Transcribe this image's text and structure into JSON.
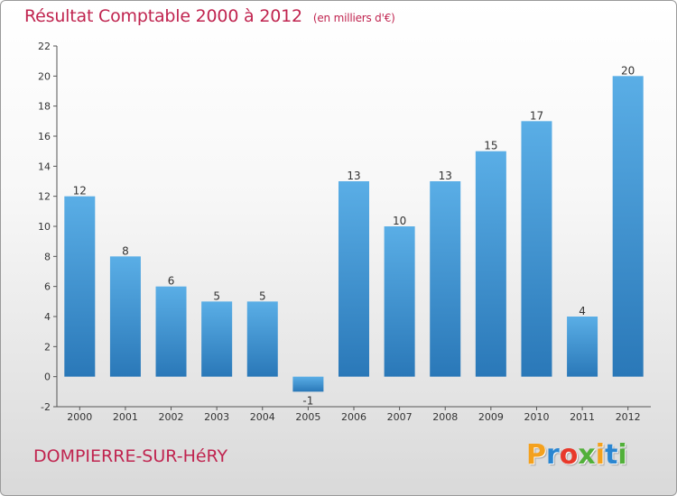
{
  "header": {
    "title": "Résultat Comptable 2000 à 2012",
    "subtitle": "(en milliers d'€)"
  },
  "footer": {
    "commune": "DOMPIERRE-SUR-HéRY",
    "logo_letters": [
      "P",
      "r",
      "o",
      "x",
      "i",
      "t",
      "i"
    ],
    "logo_colors": [
      "#f4a11d",
      "#2a86d1",
      "#e8392b",
      "#52b03a",
      "#f4a11d",
      "#2a86d1",
      "#52b03a"
    ]
  },
  "chart_data": {
    "type": "bar",
    "title": "Résultat Comptable 2000 à 2012",
    "subtitle": "(en milliers d'€)",
    "xlabel": "",
    "ylabel": "",
    "categories": [
      "2000",
      "2001",
      "2002",
      "2003",
      "2004",
      "2005",
      "2006",
      "2007",
      "2008",
      "2009",
      "2010",
      "2011",
      "2012"
    ],
    "values": [
      12,
      8,
      6,
      5,
      5,
      -1,
      13,
      10,
      13,
      15,
      17,
      4,
      20
    ],
    "data_labels": [
      "12",
      "8",
      "6",
      "5",
      "5",
      "-1",
      "13",
      "10",
      "13",
      "15",
      "17",
      "4",
      "20"
    ],
    "ylim": [
      -2,
      22
    ],
    "yticks": [
      -2,
      0,
      2,
      4,
      6,
      8,
      10,
      12,
      14,
      16,
      18,
      20,
      22
    ],
    "grid": false,
    "bar_color_top": "#5aaee6",
    "bar_color_bottom": "#2a78b8"
  }
}
